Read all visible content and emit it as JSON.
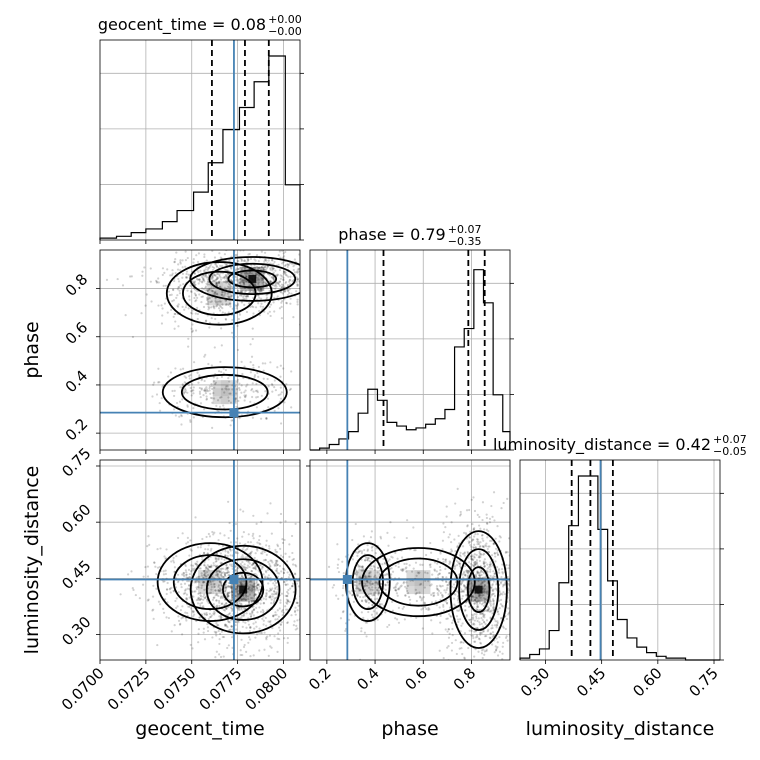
{
  "chart_data": {
    "type": "corner",
    "parameters": [
      {
        "name": "geocent_time",
        "label": "geocent_time",
        "range": [
          0.07,
          0.0809
        ],
        "ticks": [
          0.07,
          0.0725,
          0.075,
          0.0775,
          0.08
        ],
        "tick_labels": [
          "0.0700",
          "0.0725",
          "0.0750",
          "0.0775",
          "0.0800"
        ],
        "title": "geocent_time = 0.08",
        "title_sup": "+0.00",
        "title_sub": "−0.00",
        "quantiles": [
          0.0761,
          0.0779,
          0.0792
        ],
        "truth": 0.0773
      },
      {
        "name": "phase",
        "label": "phase",
        "range": [
          0.13,
          0.96
        ],
        "ticks": [
          0.2,
          0.4,
          0.6,
          0.8
        ],
        "tick_labels": [
          "0.2",
          "0.4",
          "0.6",
          "0.8"
        ],
        "title": "phase = 0.79",
        "title_sup": "+0.07",
        "title_sub": "−0.35",
        "quantiles": [
          0.435,
          0.787,
          0.855
        ],
        "truth": 0.285
      },
      {
        "name": "luminosity_distance",
        "label": "luminosity_distance",
        "range": [
          0.232,
          0.766
        ],
        "ticks": [
          0.3,
          0.45,
          0.6,
          0.75
        ],
        "tick_labels": [
          "0.30",
          "0.45",
          "0.60",
          "0.75"
        ],
        "title": "luminosity_distance = 0.42",
        "title_sup": "+0.07",
        "title_sub": "−0.05",
        "quantiles": [
          0.37,
          0.42,
          0.48
        ],
        "truth": 0.447
      }
    ],
    "histograms": [
      {
        "param": "geocent_time",
        "bins_x": [
          0.07,
          0.0709,
          0.0717,
          0.0725,
          0.0734,
          0.0742,
          0.0751,
          0.0759,
          0.0767,
          0.0776,
          0.0784,
          0.0792,
          0.0801
        ],
        "counts": [
          0.01,
          0.02,
          0.04,
          0.06,
          0.1,
          0.16,
          0.26,
          0.42,
          0.6,
          0.72,
          0.86,
          1.0,
          0.3
        ]
      },
      {
        "param": "phase",
        "bins_x": [
          0.13,
          0.17,
          0.21,
          0.25,
          0.29,
          0.33,
          0.37,
          0.41,
          0.45,
          0.49,
          0.53,
          0.57,
          0.61,
          0.65,
          0.69,
          0.73,
          0.77,
          0.81,
          0.85,
          0.89,
          0.93,
          0.96
        ],
        "counts": [
          0.0,
          0.01,
          0.03,
          0.06,
          0.1,
          0.2,
          0.33,
          0.27,
          0.15,
          0.13,
          0.11,
          0.12,
          0.14,
          0.17,
          0.22,
          0.56,
          0.66,
          0.98,
          0.8,
          0.3,
          0.1
        ]
      },
      {
        "param": "luminosity_distance",
        "bins_x": [
          0.232,
          0.258,
          0.284,
          0.31,
          0.336,
          0.362,
          0.388,
          0.414,
          0.44,
          0.466,
          0.492,
          0.518,
          0.544,
          0.57,
          0.596,
          0.622,
          0.648,
          0.674,
          0.7,
          0.726
        ],
        "counts": [
          0.01,
          0.03,
          0.06,
          0.16,
          0.42,
          0.73,
          1.0,
          1.0,
          0.71,
          0.43,
          0.22,
          0.12,
          0.07,
          0.04,
          0.02,
          0.01,
          0.01,
          0.0,
          0.0
        ]
      }
    ],
    "truth_color": "#4682b4",
    "grid": true
  }
}
